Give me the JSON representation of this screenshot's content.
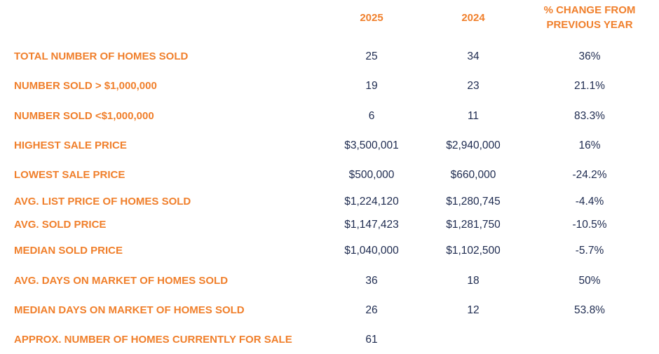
{
  "header": {
    "col_2025": "2025",
    "col_2024": "2024",
    "col_change_line1": "% CHANGE FROM",
    "col_change_line2": "PREVIOUS YEAR"
  },
  "rows": [
    {
      "label": "TOTAL NUMBER OF HOMES SOLD",
      "v2025": "25",
      "v2024": "34",
      "change": "36%"
    },
    {
      "label": "NUMBER SOLD > $1,000,000",
      "v2025": "19",
      "v2024": "23",
      "change": "21.1%"
    },
    {
      "label": "NUMBER SOLD <$1,000,000",
      "v2025": "6",
      "v2024": "11",
      "change": "83.3%"
    },
    {
      "label": "HIGHEST SALE PRICE",
      "v2025": "$3,500,001",
      "v2024": "$2,940,000",
      "change": "16%"
    },
    {
      "label": "LOWEST SALE PRICE",
      "v2025": "$500,000",
      "v2024": "$660,000",
      "change": "-24.2%"
    },
    {
      "label": "AVG. LIST PRICE OF HOMES SOLD",
      "v2025": "$1,224,120",
      "v2024": "$1,280,745",
      "change": "-4.4%"
    },
    {
      "label": "AVG. SOLD PRICE",
      "v2025": "$1,147,423",
      "v2024": "$1,281,750",
      "change": "-10.5%"
    },
    {
      "label": "MEDIAN SOLD PRICE",
      "v2025": "$1,040,000",
      "v2024": "$1,102,500",
      "change": "-5.7%"
    },
    {
      "label": "AVG. DAYS ON MARKET OF HOMES SOLD",
      "v2025": "36",
      "v2024": "18",
      "change": "50%"
    },
    {
      "label": "MEDIAN DAYS ON MARKET OF HOMES SOLD",
      "v2025": "26",
      "v2024": "12",
      "change": "53.8%"
    },
    {
      "label": "APPROX. NUMBER OF HOMES CURRENTLY FOR SALE",
      "v2025": "61",
      "v2024": "",
      "change": ""
    }
  ],
  "colors": {
    "label_orange": "#f07f2b",
    "value_navy": "#1d2a4f"
  }
}
